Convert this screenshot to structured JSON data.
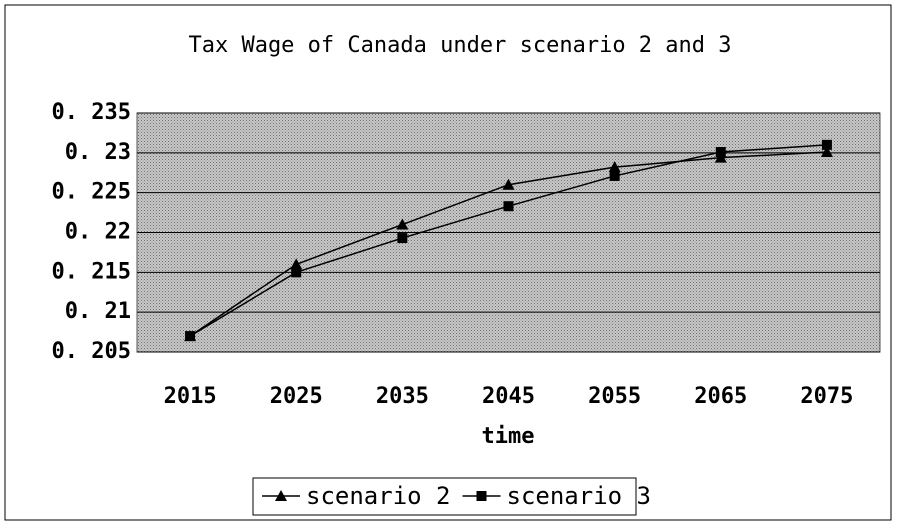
{
  "chart_data": {
    "type": "line",
    "title": "Tax Wage of Canada under scenario 2 and 3",
    "x_label": "time",
    "categories": [
      "2015",
      "2025",
      "2035",
      "2045",
      "2055",
      "2065",
      "2075"
    ],
    "series": [
      {
        "name": "scenario 2",
        "color": "#000000",
        "marker": "triangle",
        "values": [
          0.207,
          0.216,
          0.221,
          0.226,
          0.2282,
          0.2294,
          0.2301
        ]
      },
      {
        "name": "scenario 3",
        "color": "#000000",
        "marker": "square",
        "values": [
          0.207,
          0.215,
          0.2193,
          0.2233,
          0.2271,
          0.2301,
          0.231
        ]
      }
    ],
    "ylim": [
      0.205,
      0.235
    ],
    "yticks": [
      {
        "value": 0.205,
        "label": "0. 205"
      },
      {
        "value": 0.21,
        "label": "0. 21"
      },
      {
        "value": 0.215,
        "label": "0. 215"
      },
      {
        "value": 0.22,
        "label": "0. 22"
      },
      {
        "value": 0.225,
        "label": "0. 225"
      },
      {
        "value": 0.23,
        "label": "0. 23"
      },
      {
        "value": 0.235,
        "label": "0. 235"
      }
    ],
    "grid": true,
    "legend": "bottom"
  }
}
